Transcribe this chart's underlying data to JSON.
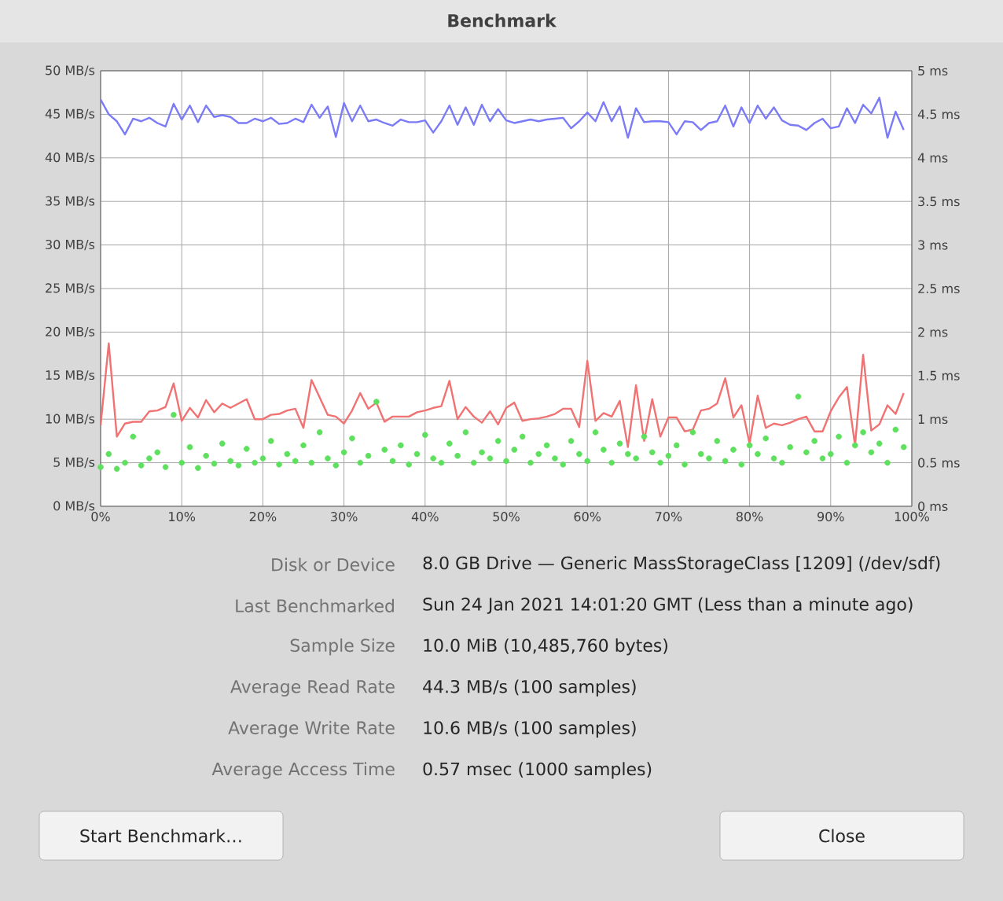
{
  "chart_data": {
    "type": "line",
    "title": "Benchmark",
    "x": [
      0,
      1,
      2,
      3,
      4,
      5,
      6,
      7,
      8,
      9,
      10,
      11,
      12,
      13,
      14,
      15,
      16,
      17,
      18,
      19,
      20,
      21,
      22,
      23,
      24,
      25,
      26,
      27,
      28,
      29,
      30,
      31,
      32,
      33,
      34,
      35,
      36,
      37,
      38,
      39,
      40,
      41,
      42,
      43,
      44,
      45,
      46,
      47,
      48,
      49,
      50,
      51,
      52,
      53,
      54,
      55,
      56,
      57,
      58,
      59,
      60,
      61,
      62,
      63,
      64,
      65,
      66,
      67,
      68,
      69,
      70,
      71,
      72,
      73,
      74,
      75,
      76,
      77,
      78,
      79,
      80,
      81,
      82,
      83,
      84,
      85,
      86,
      87,
      88,
      89,
      90,
      91,
      92,
      93,
      94,
      95,
      96,
      97,
      98,
      99
    ],
    "series": [
      {
        "color": "#7b7bf7",
        "values": [
          46.7,
          45.0,
          44.2,
          42.7,
          44.5,
          44.2,
          44.6,
          44.0,
          43.6,
          46.2,
          44.4,
          46.0,
          44.1,
          46.0,
          44.7,
          44.9,
          44.7,
          44.0,
          44.0,
          44.5,
          44.2,
          44.6,
          43.9,
          44.0,
          44.5,
          44.1,
          46.1,
          44.6,
          45.9,
          42.4,
          46.3,
          44.2,
          46.0,
          44.2,
          44.4,
          44.0,
          43.7,
          44.4,
          44.1,
          44.1,
          44.3,
          42.9,
          44.2,
          46.0,
          43.8,
          45.8,
          43.8,
          46.1,
          44.2,
          45.6,
          44.3,
          44.0,
          44.2,
          44.4,
          44.2,
          44.4,
          44.5,
          44.6,
          43.4,
          44.2,
          45.2,
          44.2,
          46.4,
          44.2,
          45.9,
          42.3,
          45.7,
          44.1,
          44.2,
          44.2,
          44.1,
          42.7,
          44.2,
          44.1,
          43.2,
          44.0,
          44.2,
          46.0,
          43.6,
          45.8,
          44.0,
          46.0,
          44.5,
          45.8,
          44.3,
          43.8,
          43.7,
          43.2,
          44.0,
          44.5,
          43.4,
          43.6,
          45.7,
          44.0,
          46.1,
          45.1,
          46.9,
          42.3,
          45.3,
          43.2
        ]
      },
      {
        "color": "#f07272",
        "values": [
          9.3,
          18.7,
          8.0,
          9.5,
          9.7,
          9.7,
          10.9,
          11.0,
          11.4,
          14.1,
          9.8,
          11.3,
          10.2,
          12.2,
          10.8,
          11.8,
          11.3,
          11.8,
          12.3,
          10.0,
          10.0,
          10.5,
          10.6,
          11.0,
          11.2,
          9.0,
          14.5,
          12.5,
          10.5,
          10.3,
          9.5,
          11.0,
          13.0,
          11.2,
          11.9,
          9.7,
          10.3,
          10.3,
          10.3,
          10.8,
          11.0,
          11.3,
          11.5,
          14.4,
          10.0,
          11.4,
          10.3,
          9.6,
          10.9,
          9.4,
          11.3,
          11.9,
          9.8,
          10.0,
          10.1,
          10.3,
          10.6,
          11.2,
          11.2,
          9.1,
          16.7,
          9.8,
          10.7,
          10.3,
          12.1,
          6.8,
          13.9,
          7.5,
          12.3,
          8.0,
          10.2,
          10.2,
          8.6,
          8.8,
          11.0,
          11.2,
          11.8,
          14.7,
          10.2,
          11.6,
          7.2,
          12.7,
          9.0,
          9.5,
          9.3,
          9.6,
          10.0,
          10.3,
          8.6,
          8.6,
          10.9,
          12.5,
          13.7,
          7.0,
          17.4,
          8.7,
          9.4,
          11.6,
          10.6,
          13.0
        ]
      },
      {
        "type": "scatter",
        "axis": "y2",
        "marker": "circle",
        "color": "#5ee05e",
        "values": [
          0.45,
          0.6,
          0.43,
          0.5,
          0.8,
          0.47,
          0.55,
          0.62,
          0.45,
          1.05,
          0.5,
          0.68,
          0.44,
          0.58,
          0.49,
          0.72,
          0.52,
          0.47,
          0.66,
          0.5,
          0.55,
          0.75,
          0.48,
          0.6,
          0.52,
          0.7,
          0.5,
          0.85,
          0.55,
          0.47,
          0.62,
          0.78,
          0.5,
          0.58,
          1.2,
          0.65,
          0.52,
          0.7,
          0.48,
          0.6,
          0.82,
          0.55,
          0.5,
          0.72,
          0.58,
          0.85,
          0.5,
          0.62,
          0.55,
          0.75,
          0.52,
          0.65,
          0.8,
          0.5,
          0.6,
          0.7,
          0.55,
          0.48,
          0.75,
          0.6,
          0.52,
          0.85,
          0.65,
          0.5,
          0.72,
          0.6,
          0.55,
          0.8,
          0.62,
          0.5,
          0.58,
          0.7,
          0.48,
          0.85,
          0.6,
          0.55,
          0.75,
          0.52,
          0.65,
          0.48,
          0.7,
          0.6,
          0.78,
          0.55,
          0.5,
          0.68,
          1.26,
          0.62,
          0.75,
          0.55,
          0.6,
          0.8,
          0.5,
          0.7,
          0.85,
          0.62,
          0.72,
          0.5,
          0.88,
          0.68
        ]
      }
    ],
    "xlim": [
      0,
      100
    ],
    "xticks": [
      {
        "value": 0,
        "label": "0%"
      },
      {
        "value": 10,
        "label": "10%"
      },
      {
        "value": 20,
        "label": "20%"
      },
      {
        "value": 30,
        "label": "30%"
      },
      {
        "value": 40,
        "label": "40%"
      },
      {
        "value": 50,
        "label": "50%"
      },
      {
        "value": 60,
        "label": "60%"
      },
      {
        "value": 70,
        "label": "70%"
      },
      {
        "value": 80,
        "label": "80%"
      },
      {
        "value": 90,
        "label": "90%"
      },
      {
        "value": 100,
        "label": "100%"
      }
    ],
    "ylim": [
      0,
      50
    ],
    "yticks": [
      {
        "value": 0,
        "label": "0 MB/s"
      },
      {
        "value": 5,
        "label": "5 MB/s"
      },
      {
        "value": 10,
        "label": "10 MB/s"
      },
      {
        "value": 15,
        "label": "15 MB/s"
      },
      {
        "value": 20,
        "label": "20 MB/s"
      },
      {
        "value": 25,
        "label": "25 MB/s"
      },
      {
        "value": 30,
        "label": "30 MB/s"
      },
      {
        "value": 35,
        "label": "35 MB/s"
      },
      {
        "value": 40,
        "label": "40 MB/s"
      },
      {
        "value": 45,
        "label": "45 MB/s"
      },
      {
        "value": 50,
        "label": "50 MB/s"
      }
    ],
    "y2lim": [
      0,
      5
    ],
    "y2ticks": [
      {
        "value": 0,
        "label": "0 ms"
      },
      {
        "value": 0.5,
        "label": "0.5 ms"
      },
      {
        "value": 1,
        "label": "1 ms"
      },
      {
        "value": 1.5,
        "label": "1.5 ms"
      },
      {
        "value": 2,
        "label": "2 ms"
      },
      {
        "value": 2.5,
        "label": "2.5 ms"
      },
      {
        "value": 3,
        "label": "3 ms"
      },
      {
        "value": 3.5,
        "label": "3.5 ms"
      },
      {
        "value": 4,
        "label": "4 ms"
      },
      {
        "value": 4.5,
        "label": "4.5 ms"
      },
      {
        "value": 5,
        "label": "5 ms"
      }
    ],
    "grid": true,
    "marker": "none",
    "annotations": [
      "Disk or Device",
      "8.0 GB Drive — Generic MassStorageClass [1209] (/dev/sdf)",
      "Last Benchmarked",
      "Sun 24 Jan 2021 14:01:20 GMT (Less than a minute ago)",
      "Sample Size",
      "10.0 MiB (10,485,760 bytes)",
      "Average Read Rate",
      "44.3 MB/s (100 samples)",
      "Average Write Rate",
      "10.6 MB/s (100 samples)",
      "Average Access Time",
      "0.57 msec (1000 samples)",
      "Start Benchmark…",
      "Close"
    ]
  }
}
